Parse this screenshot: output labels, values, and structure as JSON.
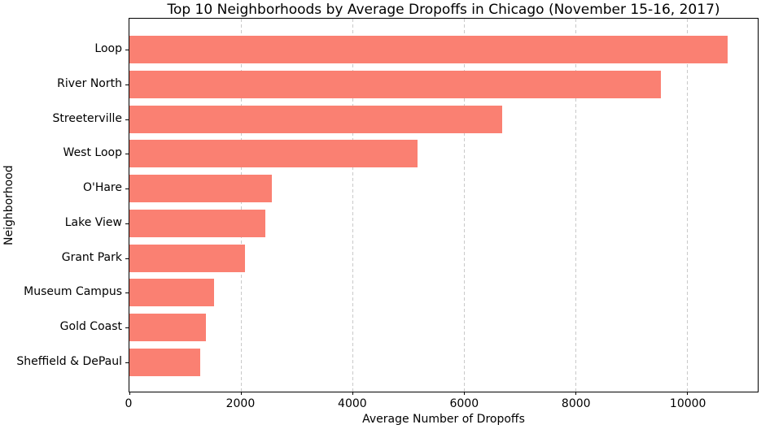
{
  "figure": {
    "background": "#ffffff",
    "spine_color": "#000000",
    "grid_color": "#c9c9c9"
  },
  "chart_data": {
    "type": "bar",
    "orientation": "horizontal",
    "title": "Top 10 Neighborhoods by Average Dropoffs in Chicago (November 15-16, 2017)",
    "xlabel": "Average Number of Dropoffs",
    "ylabel": "Neighborhood",
    "categories": [
      "Loop",
      "River North",
      "Streeterville",
      "West Loop",
      "O'Hare",
      "Lake View",
      "Grant Park",
      "Museum Campus",
      "Gold Coast",
      "Sheffield & DePaul"
    ],
    "values": [
      10727,
      9524,
      6682,
      5163,
      2547,
      2438,
      2075,
      1516,
      1370,
      1264
    ],
    "xticks": [
      0,
      2000,
      4000,
      6000,
      8000,
      10000
    ],
    "xtick_labels": [
      "0",
      "2000",
      "4000",
      "6000",
      "8000",
      "10000"
    ],
    "xlim": [
      0,
      11263
    ],
    "grid": "vertical-dashed",
    "legend": "none",
    "bar_color": "#FA8072"
  }
}
